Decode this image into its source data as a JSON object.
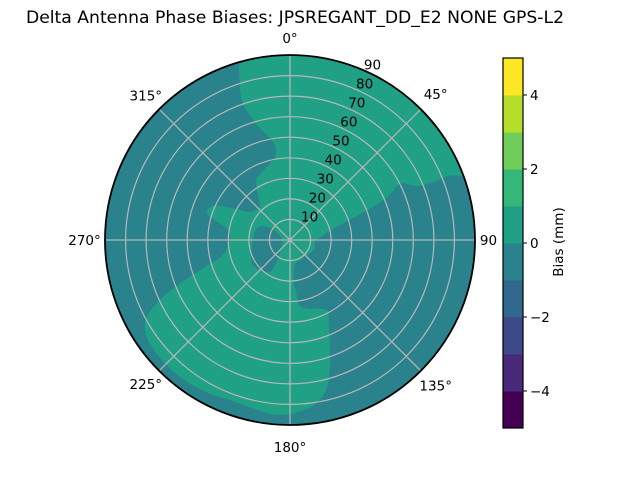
{
  "title": "Delta Antenna Phase Biases: JPSREGANT_DD_E2 NONE GPS-L2",
  "chart_data": {
    "type": "polar_contour",
    "theta_ticks": [
      {
        "label": "0°",
        "angle_deg": 0
      },
      {
        "label": "45°",
        "angle_deg": 45
      },
      {
        "label": "90",
        "angle_deg": 90
      },
      {
        "label": "135°",
        "angle_deg": 135
      },
      {
        "label": "180°",
        "angle_deg": 180
      },
      {
        "label": "225°",
        "angle_deg": 225
      },
      {
        "label": "270°",
        "angle_deg": 270
      },
      {
        "label": "315°",
        "angle_deg": 315
      }
    ],
    "radial_ticks": [
      10,
      20,
      30,
      40,
      50,
      60,
      70,
      80,
      90
    ],
    "radial_max": 90,
    "grid_color": "#b8b8b8",
    "outline_color": "#000000",
    "regions": [
      {
        "name": "positive-bias-band",
        "value_range": [
          0,
          1
        ],
        "color": "#20a085",
        "description": "light teal-green: north/north-east sector, lower-left lobe, ring around center"
      },
      {
        "name": "negative-bias-band",
        "value_range": [
          -1,
          0
        ],
        "color": "#29828c",
        "description": "darker teal-blue: west and top-left rim mass, east arm reaching center, south lobe, small blob left of center"
      }
    ],
    "colorbar": {
      "label": "Bias (mm)",
      "vmin": -5,
      "vmax": 5,
      "tick_values": [
        4,
        2,
        0,
        -2,
        -4
      ],
      "tick_labels": [
        "4",
        "2",
        "0",
        "−2",
        "−4"
      ],
      "band_edges": [
        -5,
        -4,
        -3,
        -2,
        -1,
        0,
        1,
        2,
        3,
        4,
        5
      ],
      "band_colors": [
        "#440154",
        "#482878",
        "#3e4989",
        "#31688e",
        "#29828c",
        "#20a085",
        "#35b779",
        "#6ece58",
        "#b5de2b",
        "#fde725"
      ]
    }
  }
}
